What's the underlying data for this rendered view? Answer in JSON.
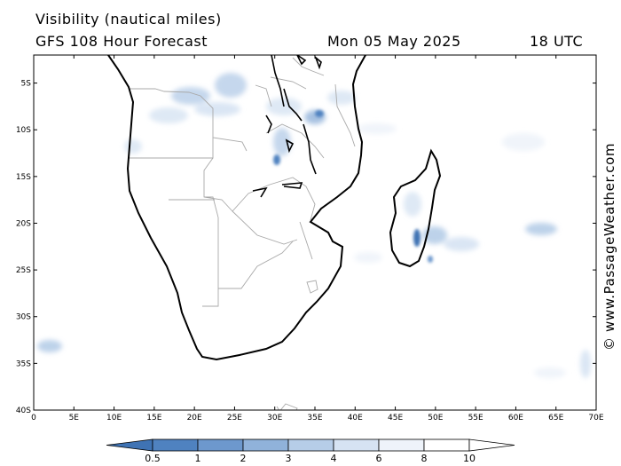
{
  "header": {
    "title": "Visibility (nautical miles)",
    "model": "GFS 108 Hour Forecast",
    "date": "Mon 05 May 2025",
    "hour": "18 UTC"
  },
  "credit": "© www.PassageWeather.com",
  "map": {
    "lat_ticks": [
      "5S",
      "10S",
      "15S",
      "20S",
      "25S",
      "30S",
      "35S",
      "40S"
    ],
    "lon_ticks": [
      "0",
      "5E",
      "10E",
      "15E",
      "20E",
      "25E",
      "30E",
      "35E",
      "40E",
      "45E",
      "50E",
      "55E",
      "60E",
      "65E",
      "70E"
    ],
    "lat_range": [
      -40,
      -2
    ],
    "lon_range": [
      0,
      70
    ]
  },
  "colorbar": {
    "labels": [
      "0.5",
      "1",
      "2",
      "3",
      "4",
      "6",
      "8",
      "10"
    ],
    "colors": [
      "#3f73b4",
      "#4f82c0",
      "#6d98cd",
      "#90b2da",
      "#b6cde8",
      "#d6e3f3",
      "#eef3fa",
      "#ffffff"
    ]
  }
}
